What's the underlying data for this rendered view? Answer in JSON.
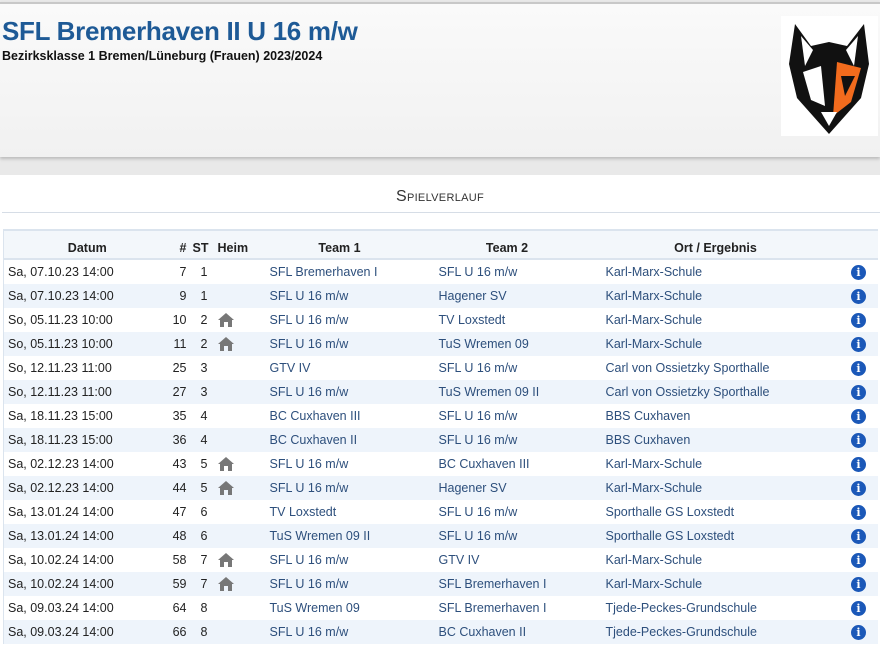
{
  "header": {
    "title": "SFL Bremerhaven II U 16 m/w",
    "subtitle": "Bezirksklasse 1 Bremen/Lüneburg (Frauen) 2023/2024",
    "logo": "wildcat-logo"
  },
  "section_title": "Spielverlauf",
  "table": {
    "columns": [
      "Datum",
      "#",
      "ST",
      "Heim",
      "Team 1",
      "Team 2",
      "Ort / Ergebnis",
      ""
    ],
    "rows": [
      {
        "datum": "Sa, 07.10.23 14:00",
        "nr": "7",
        "st": "1",
        "heim": false,
        "team1": "SFL Bremerhaven I",
        "team2": "SFL U 16 m/w",
        "ort": "Karl-Marx-Schule"
      },
      {
        "datum": "Sa, 07.10.23 14:00",
        "nr": "9",
        "st": "1",
        "heim": false,
        "team1": "SFL U 16 m/w",
        "team2": "Hagener SV",
        "ort": "Karl-Marx-Schule"
      },
      {
        "datum": "So, 05.11.23 10:00",
        "nr": "10",
        "st": "2",
        "heim": true,
        "team1": "SFL U 16 m/w",
        "team2": "TV Loxstedt",
        "ort": "Karl-Marx-Schule"
      },
      {
        "datum": "So, 05.11.23 10:00",
        "nr": "11",
        "st": "2",
        "heim": true,
        "team1": "SFL U 16 m/w",
        "team2": "TuS Wremen 09",
        "ort": "Karl-Marx-Schule"
      },
      {
        "datum": "So, 12.11.23 11:00",
        "nr": "25",
        "st": "3",
        "heim": false,
        "team1": "GTV IV",
        "team2": "SFL U 16 m/w",
        "ort": "Carl von Ossietzky Sporthalle"
      },
      {
        "datum": "So, 12.11.23 11:00",
        "nr": "27",
        "st": "3",
        "heim": false,
        "team1": "SFL U 16 m/w",
        "team2": "TuS Wremen 09  II",
        "ort": "Carl von Ossietzky Sporthalle"
      },
      {
        "datum": "Sa, 18.11.23 15:00",
        "nr": "35",
        "st": "4",
        "heim": false,
        "team1": "BC Cuxhaven III",
        "team2": "SFL U 16 m/w",
        "ort": "BBS Cuxhaven"
      },
      {
        "datum": "Sa, 18.11.23 15:00",
        "nr": "36",
        "st": "4",
        "heim": false,
        "team1": "BC Cuxhaven II",
        "team2": "SFL U 16 m/w",
        "ort": "BBS Cuxhaven"
      },
      {
        "datum": "Sa, 02.12.23 14:00",
        "nr": "43",
        "st": "5",
        "heim": true,
        "team1": "SFL U 16 m/w",
        "team2": "BC Cuxhaven III",
        "ort": "Karl-Marx-Schule"
      },
      {
        "datum": "Sa, 02.12.23 14:00",
        "nr": "44",
        "st": "5",
        "heim": true,
        "team1": "SFL U 16 m/w",
        "team2": "Hagener SV",
        "ort": "Karl-Marx-Schule"
      },
      {
        "datum": "Sa, 13.01.24 14:00",
        "nr": "47",
        "st": "6",
        "heim": false,
        "team1": "TV Loxstedt",
        "team2": "SFL U 16 m/w",
        "ort": "Sporthalle GS Loxstedt"
      },
      {
        "datum": "Sa, 13.01.24 14:00",
        "nr": "48",
        "st": "6",
        "heim": false,
        "team1": "TuS Wremen 09  II",
        "team2": "SFL U 16 m/w",
        "ort": "Sporthalle GS Loxstedt"
      },
      {
        "datum": "Sa, 10.02.24 14:00",
        "nr": "58",
        "st": "7",
        "heim": true,
        "team1": "SFL U 16 m/w",
        "team2": "GTV IV",
        "ort": "Karl-Marx-Schule"
      },
      {
        "datum": "Sa, 10.02.24 14:00",
        "nr": "59",
        "st": "7",
        "heim": true,
        "team1": "SFL U 16 m/w",
        "team2": "SFL Bremerhaven I",
        "ort": "Karl-Marx-Schule"
      },
      {
        "datum": "Sa, 09.03.24 14:00",
        "nr": "64",
        "st": "8",
        "heim": false,
        "team1": "TuS Wremen 09",
        "team2": "SFL Bremerhaven I",
        "ort": "Tjede-Peckes-Grundschule"
      },
      {
        "datum": "Sa, 09.03.24 14:00",
        "nr": "66",
        "st": "8",
        "heim": false,
        "team1": "SFL U 16 m/w",
        "team2": "BC Cuxhaven II",
        "ort": "Tjede-Peckes-Grundschule"
      }
    ]
  },
  "info_icon_glyph": "i",
  "colors": {
    "title": "#1e5a96",
    "link": "#2d4f7c",
    "info": "#1b58b8",
    "logo_orange": "#f26b1d"
  }
}
